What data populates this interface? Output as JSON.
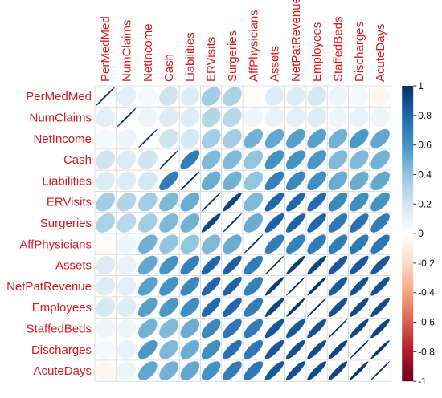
{
  "chart_data": {
    "type": "heatmap",
    "style": "corrplot-ellipse",
    "variables": [
      "PerMedMed",
      "NumClaims",
      "NetIncome",
      "Cash",
      "Liabilities",
      "ERVisits",
      "Surgeries",
      "AffPhysicians",
      "Assets",
      "NetPatRevenue",
      "Employees",
      "StaffedBeds",
      "Discharges",
      "AcuteDays"
    ],
    "matrix": [
      [
        1.0,
        0.12,
        0.05,
        0.2,
        0.15,
        0.35,
        0.32,
        -0.02,
        0.15,
        0.15,
        0.18,
        0.07,
        0.05,
        -0.05
      ],
      [
        0.12,
        1.0,
        0.08,
        0.15,
        0.15,
        0.3,
        0.28,
        0.08,
        0.1,
        0.12,
        0.15,
        0.08,
        0.1,
        0.08
      ],
      [
        0.05,
        0.08,
        1.0,
        0.2,
        0.18,
        0.35,
        0.35,
        0.48,
        0.52,
        0.55,
        0.55,
        0.48,
        0.58,
        0.52
      ],
      [
        0.2,
        0.15,
        0.2,
        1.0,
        0.7,
        0.45,
        0.45,
        0.4,
        0.6,
        0.6,
        0.58,
        0.45,
        0.45,
        0.48
      ],
      [
        0.15,
        0.15,
        0.18,
        0.7,
        1.0,
        0.5,
        0.48,
        0.4,
        0.68,
        0.65,
        0.62,
        0.5,
        0.5,
        0.52
      ],
      [
        0.35,
        0.3,
        0.35,
        0.45,
        0.5,
        1.0,
        0.92,
        0.45,
        0.8,
        0.8,
        0.78,
        0.65,
        0.62,
        0.6
      ],
      [
        0.32,
        0.28,
        0.35,
        0.45,
        0.48,
        0.92,
        1.0,
        0.5,
        0.82,
        0.82,
        0.8,
        0.72,
        0.75,
        0.7
      ],
      [
        -0.02,
        0.08,
        0.48,
        0.4,
        0.4,
        0.45,
        0.5,
        1.0,
        0.7,
        0.68,
        0.7,
        0.7,
        0.72,
        0.72
      ],
      [
        0.15,
        0.1,
        0.52,
        0.6,
        0.68,
        0.8,
        0.82,
        0.7,
        1.0,
        0.95,
        0.92,
        0.85,
        0.85,
        0.85
      ],
      [
        0.15,
        0.12,
        0.55,
        0.6,
        0.65,
        0.8,
        0.82,
        0.68,
        0.95,
        1.0,
        0.97,
        0.85,
        0.88,
        0.88
      ],
      [
        0.18,
        0.15,
        0.55,
        0.58,
        0.62,
        0.78,
        0.8,
        0.7,
        0.92,
        0.97,
        1.0,
        0.88,
        0.9,
        0.9
      ],
      [
        0.07,
        0.08,
        0.48,
        0.45,
        0.5,
        0.65,
        0.72,
        0.7,
        0.85,
        0.85,
        0.88,
        1.0,
        0.92,
        0.92
      ],
      [
        0.05,
        0.1,
        0.58,
        0.45,
        0.5,
        0.62,
        0.75,
        0.72,
        0.85,
        0.88,
        0.9,
        0.92,
        1.0,
        0.97
      ],
      [
        -0.05,
        0.08,
        0.52,
        0.48,
        0.52,
        0.6,
        0.7,
        0.72,
        0.85,
        0.88,
        0.9,
        0.92,
        0.97,
        1.0
      ]
    ],
    "colorbar": {
      "range": [
        -1,
        1
      ],
      "ticks": [
        "1",
        "0.8",
        "0.6",
        "0.4",
        "0.2",
        "0",
        "-0.2",
        "-0.4",
        "-0.6",
        "-0.8",
        "-1"
      ]
    },
    "colors": {
      "negative_end": "#67001f",
      "neutral": "#ffffff",
      "positive_end": "#053061",
      "label": "#d7191c",
      "grid": "#d9d9d9"
    }
  }
}
